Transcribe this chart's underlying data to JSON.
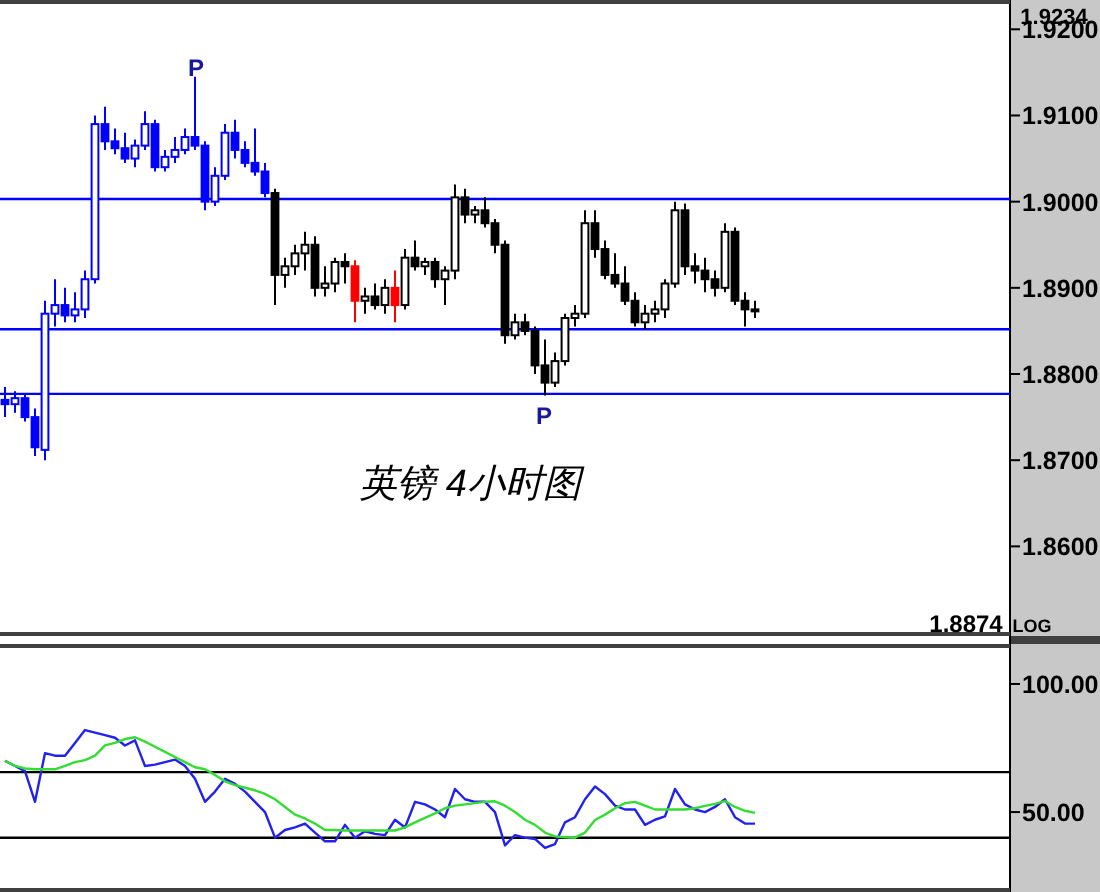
{
  "chart_data": [
    {
      "type": "candlestick",
      "title": "英镑 4小时图",
      "tick_labels": "y",
      "categories": [
        null,
        null,
        null,
        null,
        null,
        null,
        null,
        null,
        null,
        null,
        null,
        null,
        null,
        null,
        null,
        null,
        null,
        null,
        null,
        null,
        null,
        null,
        null,
        null,
        null,
        null,
        null,
        null,
        null,
        null,
        null,
        null,
        null,
        null,
        null,
        null,
        null,
        null,
        null,
        null,
        null,
        null,
        null,
        null,
        null,
        null,
        null,
        null,
        null,
        null,
        null,
        null,
        null,
        null,
        null,
        null,
        null,
        null,
        null,
        null,
        null,
        null,
        null,
        null,
        null,
        null,
        null,
        null,
        null,
        null,
        null,
        null,
        null,
        null,
        null,
        null,
        null,
        null,
        null,
        null,
        null,
        null,
        null,
        null,
        null,
        null,
        null,
        null,
        null,
        null,
        null,
        null,
        null,
        null,
        null,
        null,
        null,
        null,
        null,
        null,
        null
      ],
      "ohlc": [
        [
          1.877,
          1.8785,
          1.875,
          1.8765
        ],
        [
          1.8765,
          1.878,
          1.8755,
          1.8772
        ],
        [
          1.8772,
          1.8778,
          1.8745,
          1.875
        ],
        [
          1.875,
          1.876,
          1.8705,
          1.8715
        ],
        [
          1.8712,
          1.8885,
          1.87,
          1.887
        ],
        [
          1.887,
          1.891,
          1.8855,
          1.888
        ],
        [
          1.888,
          1.89,
          1.886,
          1.8868
        ],
        [
          1.8868,
          1.8895,
          1.886,
          1.8875
        ],
        [
          1.8875,
          1.892,
          1.8865,
          1.891
        ],
        [
          1.891,
          1.91,
          1.8905,
          1.909
        ],
        [
          1.909,
          1.911,
          1.906,
          1.907
        ],
        [
          1.907,
          1.9085,
          1.9055,
          1.9062
        ],
        [
          1.9062,
          1.908,
          1.9045,
          1.905
        ],
        [
          1.905,
          1.9072,
          1.904,
          1.9065
        ],
        [
          1.9065,
          1.9105,
          1.906,
          1.909
        ],
        [
          1.909,
          1.9095,
          1.9035,
          1.904
        ],
        [
          1.904,
          1.906,
          1.9035,
          1.9052
        ],
        [
          1.9052,
          1.9075,
          1.9045,
          1.906
        ],
        [
          1.906,
          1.9085,
          1.9055,
          1.9075
        ],
        [
          1.9075,
          1.9145,
          1.906,
          1.9065
        ],
        [
          1.9065,
          1.907,
          1.899,
          1.9
        ],
        [
          1.9,
          1.904,
          1.8995,
          1.903
        ],
        [
          1.903,
          1.909,
          1.9025,
          1.908
        ],
        [
          1.908,
          1.9095,
          1.905,
          1.906
        ],
        [
          1.906,
          1.907,
          1.904,
          1.9045
        ],
        [
          1.9045,
          1.9085,
          1.903,
          1.9035
        ],
        [
          1.9035,
          1.9045,
          1.9005,
          1.901
        ],
        [
          1.901,
          1.9015,
          1.888,
          1.8915
        ],
        [
          1.8915,
          1.8935,
          1.89,
          1.8925
        ],
        [
          1.8925,
          1.895,
          1.8915,
          1.894
        ],
        [
          1.894,
          1.8965,
          1.892,
          1.895
        ],
        [
          1.895,
          1.896,
          1.889,
          1.89
        ],
        [
          1.89,
          1.8925,
          1.889,
          1.8905
        ],
        [
          1.8905,
          1.8935,
          1.8895,
          1.893
        ],
        [
          1.893,
          1.894,
          1.8905,
          1.8925
        ],
        [
          1.8925,
          1.8932,
          1.886,
          1.8885
        ],
        [
          1.8885,
          1.89,
          1.887,
          1.889
        ],
        [
          1.889,
          1.8905,
          1.8875,
          1.888
        ],
        [
          1.888,
          1.891,
          1.887,
          1.89
        ],
        [
          1.89,
          1.892,
          1.886,
          1.888
        ],
        [
          1.888,
          1.8945,
          1.8875,
          1.8935
        ],
        [
          1.8935,
          1.8955,
          1.892,
          1.8925
        ],
        [
          1.8925,
          1.8935,
          1.8915,
          1.893
        ],
        [
          1.893,
          1.8935,
          1.89,
          1.891
        ],
        [
          1.891,
          1.8925,
          1.888,
          1.892
        ],
        [
          1.892,
          1.902,
          1.891,
          1.9005
        ],
        [
          1.9005,
          1.9015,
          1.8975,
          1.8985
        ],
        [
          1.8985,
          1.8995,
          1.8975,
          1.899
        ],
        [
          1.899,
          1.9005,
          1.897,
          1.8975
        ],
        [
          1.8975,
          1.898,
          1.894,
          1.895
        ],
        [
          1.895,
          1.8955,
          1.8835,
          1.8845
        ],
        [
          1.8845,
          1.887,
          1.884,
          1.886
        ],
        [
          1.886,
          1.887,
          1.8845,
          1.885
        ],
        [
          1.885,
          1.8855,
          1.88,
          1.881
        ],
        [
          1.881,
          1.884,
          1.8775,
          1.879
        ],
        [
          1.879,
          1.8825,
          1.8785,
          1.8815
        ],
        [
          1.8815,
          1.887,
          1.881,
          1.8865
        ],
        [
          1.8865,
          1.888,
          1.8855,
          1.887
        ],
        [
          1.887,
          1.899,
          1.8865,
          1.8975
        ],
        [
          1.8975,
          1.899,
          1.8935,
          1.8945
        ],
        [
          1.8945,
          1.8955,
          1.891,
          1.8915
        ],
        [
          1.8915,
          1.894,
          1.89,
          1.8905
        ],
        [
          1.8905,
          1.8925,
          1.888,
          1.8885
        ],
        [
          1.8885,
          1.8895,
          1.8855,
          1.886
        ],
        [
          1.886,
          1.888,
          1.8852,
          1.887
        ],
        [
          1.887,
          1.8885,
          1.886,
          1.8875
        ],
        [
          1.8875,
          1.891,
          1.8865,
          1.8905
        ],
        [
          1.8905,
          1.9,
          1.89,
          1.899
        ],
        [
          1.899,
          1.8998,
          1.8915,
          1.8925
        ],
        [
          1.8925,
          1.894,
          1.8905,
          1.892
        ],
        [
          1.892,
          1.8935,
          1.8895,
          1.891
        ],
        [
          1.891,
          1.892,
          1.889,
          1.89
        ],
        [
          1.89,
          1.8975,
          1.8895,
          1.8965
        ],
        [
          1.8965,
          1.897,
          1.888,
          1.8885
        ],
        [
          1.8885,
          1.8895,
          1.8855,
          1.8875
        ],
        [
          1.8875,
          1.8885,
          1.8865,
          1.8874
        ],
        null,
        null,
        null,
        null,
        null,
        null,
        null,
        null,
        null,
        null,
        null,
        null,
        null,
        null,
        null,
        null,
        null,
        null,
        null,
        null,
        null,
        null,
        null,
        null,
        null
      ],
      "colors": [
        "#0000ff",
        "#0000ff",
        "#0000ff",
        "#0000ff",
        "#0000ff",
        "#0000ff",
        "#0000ff",
        "#0000ff",
        "#0000ff",
        "#0000ff",
        "#0000ff",
        "#0000ff",
        "#0000ff",
        "#0000ff",
        "#0000ff",
        "#0000ff",
        "#0000ff",
        "#0000ff",
        "#0000ff",
        "#0000ff",
        "#0000ff",
        "#0000ff",
        "#0000ff",
        "#0000ff",
        "#0000ff",
        "#0000ff",
        "#0000ff",
        "#000000",
        "#000000",
        "#000000",
        "#000000",
        "#000000",
        "#000000",
        "#000000",
        "#000000",
        "#ff0000",
        "#000000",
        "#000000",
        "#000000",
        "#ff0000",
        "#000000",
        "#000000",
        "#000000",
        "#000000",
        "#000000",
        "#000000",
        "#000000",
        "#000000",
        "#000000",
        "#000000",
        "#000000",
        "#000000",
        "#000000",
        "#000000",
        "#000000",
        "#000000",
        "#000000",
        "#000000",
        "#000000",
        "#000000",
        "#000000",
        "#000000",
        "#000000",
        "#000000",
        "#000000",
        "#000000",
        "#000000",
        "#000000",
        "#000000",
        "#000000",
        "#000000",
        "#000000",
        "#000000",
        "#000000",
        "#000000",
        "#000000",
        null,
        null,
        null,
        null,
        null,
        null,
        null,
        null,
        null,
        null,
        null,
        null,
        null,
        null,
        null,
        null,
        null,
        null,
        null,
        null,
        null,
        null,
        null,
        null,
        null
      ],
      "ylim": [
        1.8496,
        1.9234
      ],
      "yticks": [
        {
          "value": 1.86,
          "label": "1.8600"
        },
        {
          "value": 1.87,
          "label": "1.8700"
        },
        {
          "value": 1.88,
          "label": "1.8800"
        },
        {
          "value": 1.89,
          "label": "1.8900"
        },
        {
          "value": 1.9,
          "label": "1.9000"
        },
        {
          "value": 1.91,
          "label": "1.9100"
        },
        {
          "value": 1.92,
          "label": "1.9200"
        }
      ],
      "ref_lines": [
        {
          "axis": "y",
          "value": 1.9003,
          "color": "#0000ff"
        },
        {
          "axis": "y",
          "value": 1.8852,
          "color": "#0000ff"
        },
        {
          "axis": "y",
          "value": 1.8777,
          "color": "#0000ff"
        }
      ],
      "annotations": [
        "P",
        "P",
        "1.9234",
        "1.8874",
        "LOG"
      ]
    },
    {
      "type": "line",
      "tick_labels": "y",
      "categories": [
        null,
        null,
        null,
        null,
        null,
        null,
        null,
        null,
        null,
        null,
        null,
        null,
        null,
        null,
        null,
        null,
        null,
        null,
        null,
        null,
        null,
        null,
        null,
        null,
        null,
        null,
        null,
        null,
        null,
        null,
        null,
        null,
        null,
        null,
        null,
        null,
        null,
        null,
        null,
        null,
        null,
        null,
        null,
        null,
        null,
        null,
        null,
        null,
        null,
        null,
        null,
        null,
        null,
        null,
        null,
        null,
        null,
        null,
        null,
        null,
        null,
        null,
        null,
        null,
        null,
        null,
        null,
        null,
        null,
        null,
        null,
        null,
        null,
        null,
        null,
        null,
        null,
        null,
        null,
        null,
        null,
        null,
        null,
        null,
        null,
        null,
        null,
        null,
        null,
        null,
        null,
        null,
        null,
        null,
        null,
        null,
        null,
        null,
        null,
        null,
        null
      ],
      "series": [
        {
          "color": "#2222ee",
          "values": [
            70,
            68,
            66,
            54,
            73,
            72,
            72,
            77,
            82,
            81,
            80,
            79,
            76,
            78,
            68,
            68.5,
            69.5,
            70.5,
            68,
            63,
            54,
            58,
            63,
            61,
            58,
            54,
            50,
            40,
            43,
            44,
            45.5,
            42,
            38.6,
            38.6,
            45,
            40,
            42.5,
            41.5,
            41,
            47,
            44,
            54,
            53,
            51,
            48,
            59,
            55,
            54,
            54,
            50,
            37,
            41,
            40,
            39.5,
            36,
            37.5,
            46,
            48,
            55,
            60,
            57,
            52.5,
            51,
            51,
            45,
            47,
            48.3,
            59,
            53,
            51,
            50,
            52,
            55,
            48,
            45.5,
            45.5,
            null,
            null,
            null,
            null,
            null,
            null,
            null,
            null,
            null,
            null,
            null,
            null,
            null,
            null,
            null,
            null,
            null,
            null,
            null,
            null,
            null,
            null,
            null,
            null,
            null
          ]
        },
        {
          "color": "#33dd33",
          "values": [
            70,
            68,
            67,
            66.7,
            66.7,
            66.7,
            68,
            69.5,
            70.3,
            72,
            76,
            77,
            78.5,
            79.2,
            77.5,
            75.5,
            73.5,
            71.5,
            69.5,
            67.5,
            66.7,
            64.5,
            62,
            60.5,
            59.5,
            58.5,
            57.1,
            55,
            52,
            49,
            47.5,
            45.5,
            43,
            43,
            42.8,
            42.8,
            42.8,
            42.8,
            42.8,
            42.8,
            44,
            46,
            47.7,
            49.5,
            51.5,
            52.5,
            53,
            53.5,
            54,
            54.2,
            52.5,
            50,
            47,
            45,
            42,
            40.5,
            40.2,
            40,
            42,
            46.9,
            49,
            51.5,
            53.5,
            54,
            52.5,
            51,
            51,
            51,
            51,
            51.5,
            52.4,
            53.2,
            54.3,
            52,
            50.5,
            49.7,
            null,
            null,
            null,
            null,
            null,
            null,
            null,
            null,
            null,
            null,
            null,
            null,
            null,
            null,
            null,
            null,
            null,
            null,
            null,
            null,
            null,
            null,
            null,
            null,
            null
          ]
        }
      ],
      "ylim": [
        18.8,
        115.6
      ],
      "yticks": [
        {
          "value": 50,
          "label": "50.00"
        },
        {
          "value": 100,
          "label": "100.00"
        }
      ],
      "ref_lines": [
        {
          "axis": "y",
          "value": 65.6,
          "color": "#000000"
        },
        {
          "axis": "y",
          "value": 40,
          "color": "#000000"
        }
      ]
    }
  ]
}
